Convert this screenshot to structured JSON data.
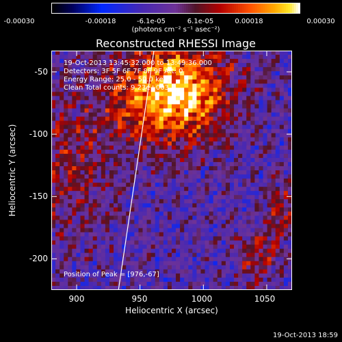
{
  "chart_data": {
    "type": "heatmap",
    "title": "Reconstructed RHESSI Image",
    "xlabel": "Heliocentric X (arcsec)",
    "ylabel": "Heliocentric Y (arcsec)",
    "xlim": [
      880,
      1070
    ],
    "ylim": [
      -225,
      -33
    ],
    "xticks": [
      "900",
      "950",
      "1000",
      "1050"
    ],
    "xtick_values": [
      900,
      950,
      1000,
      1050
    ],
    "yticks": [
      "-50",
      "-100",
      "-150",
      "-200"
    ],
    "ytick_values": [
      -50,
      -100,
      -150,
      -200
    ],
    "colorbar": {
      "min": -0.0003,
      "max": 0.0003,
      "ticks": [
        "-0.00030",
        "-0.00018",
        "-6.1e-05",
        "6.1e-05",
        "0.00018",
        "0.00030"
      ],
      "tick_values": [
        -0.0003,
        -0.00018,
        -6.1e-05,
        6.1e-05,
        0.00018,
        0.0003
      ],
      "units": "(photons cm⁻² s⁻¹ asec⁻²)",
      "colormap": "RHESSI black-blue-purple-red-orange-yellow-white"
    },
    "peak": [
      976,
      -67
    ],
    "limb_line": [
      [
        933,
        -225
      ],
      [
        961,
        -33
      ]
    ],
    "annotations": [
      "19-Oct-2013 13:45:32.000 to 13:49:36.000",
      "Detectors: 3F 5F 6F 7F 8F 9F Att: 0",
      "Energy Range: 25.0 - 50.0 keV",
      "Clean    Total counts: 9.23e+003",
      "Position of Peak = [976,-67]"
    ]
  },
  "footer_timestamp": "19-Oct-2013 18:59"
}
